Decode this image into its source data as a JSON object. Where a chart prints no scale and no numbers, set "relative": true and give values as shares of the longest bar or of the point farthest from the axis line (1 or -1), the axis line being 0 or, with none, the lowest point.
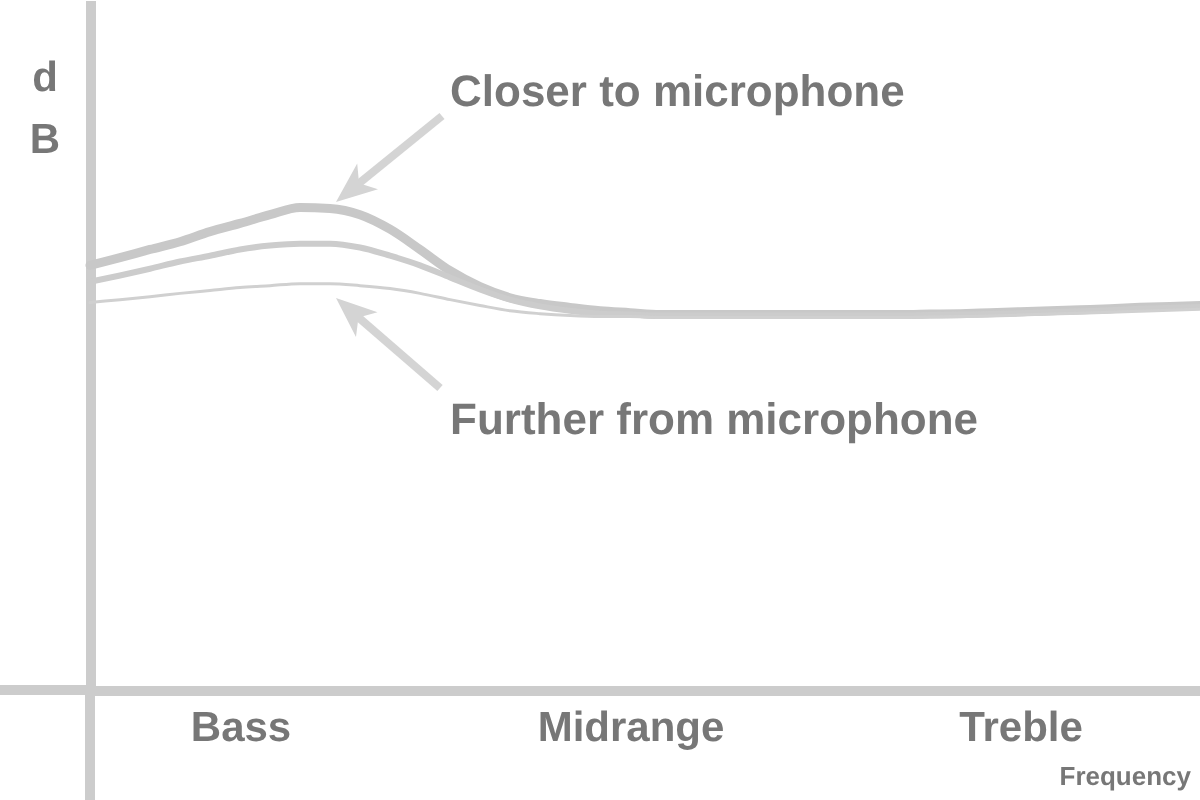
{
  "chart_data": {
    "type": "line",
    "relative": true,
    "ylabel": "dB",
    "xlabel": "Frequency",
    "categories": [
      null,
      null,
      null,
      null,
      null,
      "Bass",
      null,
      null,
      null,
      null,
      null,
      null,
      null,
      null,
      null,
      null,
      null,
      null,
      "Midrange",
      null,
      null,
      null,
      null,
      null,
      null,
      null,
      null,
      null,
      null,
      null,
      null,
      "Treble",
      null,
      null,
      null,
      null,
      null,
      null
    ],
    "series": [
      {
        "color": "#c8c8c8",
        "values": [
          0.88,
          0.896,
          0.913,
          0.929,
          0.95,
          0.967,
          0.985,
          1.0,
          0.998,
          0.985,
          0.955,
          0.913,
          0.869,
          0.836,
          0.813,
          0.801,
          0.793,
          0.786,
          0.782,
          0.778,
          0.778,
          0.778,
          0.778,
          0.778,
          0.778,
          0.778,
          0.778,
          0.778,
          0.779,
          0.78,
          0.782,
          0.784,
          0.786,
          0.788,
          0.79,
          0.793,
          0.795,
          0.797
        ]
      },
      {
        "color": "#cccccc",
        "values": [
          0.846,
          0.859,
          0.873,
          0.888,
          0.9,
          0.913,
          0.921,
          0.925,
          0.925,
          0.917,
          0.9,
          0.88,
          0.855,
          0.83,
          0.809,
          0.795,
          0.786,
          0.78,
          0.778,
          0.776,
          0.776,
          0.776,
          0.776,
          0.776,
          0.776,
          0.776,
          0.776,
          0.776,
          0.777,
          0.778,
          0.779,
          0.781,
          0.783,
          0.785,
          0.787,
          0.79,
          0.792,
          0.794
        ]
      },
      {
        "color": "#d0d0d0",
        "values": [
          0.803,
          0.809,
          0.815,
          0.822,
          0.828,
          0.834,
          0.838,
          0.842,
          0.842,
          0.838,
          0.832,
          0.822,
          0.809,
          0.797,
          0.786,
          0.78,
          0.776,
          0.774,
          0.774,
          0.772,
          0.772,
          0.772,
          0.772,
          0.772,
          0.772,
          0.772,
          0.772,
          0.772,
          0.773,
          0.774,
          0.775,
          0.777,
          0.779,
          0.781,
          0.783,
          0.785,
          0.787,
          0.789
        ]
      }
    ],
    "annotations": [
      "Closer to microphone",
      "Further from microphone"
    ],
    "tick_labels": "x",
    "grid": false
  }
}
